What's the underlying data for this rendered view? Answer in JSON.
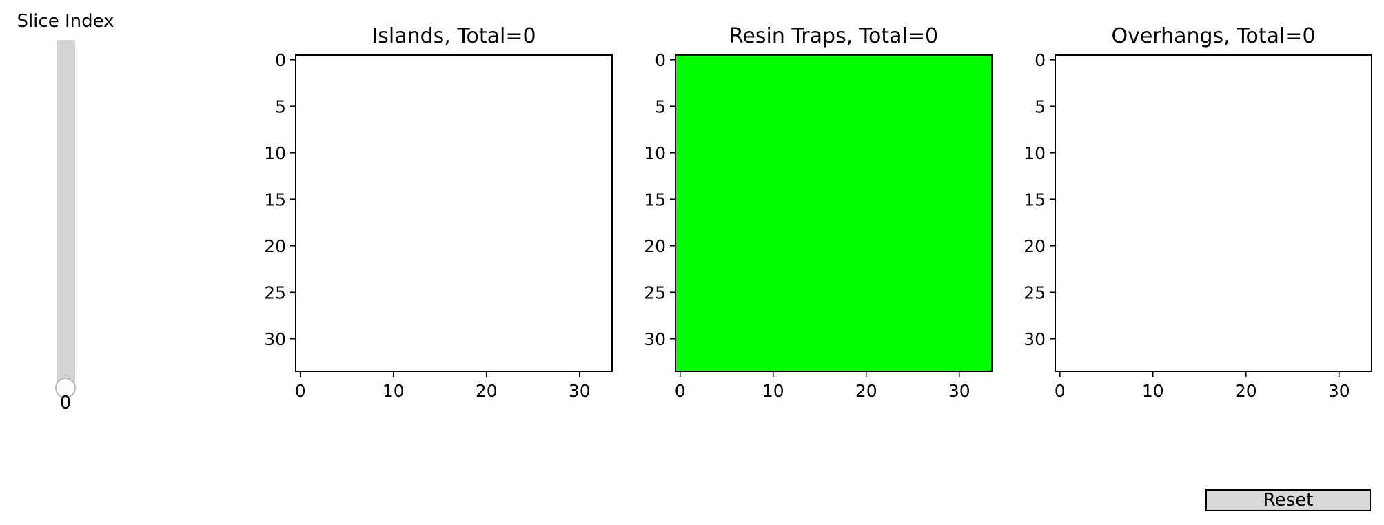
{
  "slider": {
    "label": "Slice Index",
    "value": "0",
    "min": 0,
    "max": 0,
    "track_color": "#d3d3d3"
  },
  "reset_button": {
    "label": "Reset",
    "color": "#d9d9d9"
  },
  "chart_data": [
    {
      "type": "heatmap",
      "title": "Islands, Total=0",
      "xlim": [
        -0.5,
        33.5
      ],
      "ylim": [
        33.5,
        -0.5
      ],
      "xticks": [
        0,
        10,
        20,
        30
      ],
      "yticks": [
        0,
        5,
        10,
        15,
        20,
        25,
        30
      ],
      "fill": "#ffffff",
      "grid": false
    },
    {
      "type": "heatmap",
      "title": "Resin Traps, Total=0",
      "xlim": [
        -0.5,
        33.5
      ],
      "ylim": [
        33.5,
        -0.5
      ],
      "xticks": [
        0,
        10,
        20,
        30
      ],
      "yticks": [
        0,
        5,
        10,
        15,
        20,
        25,
        30
      ],
      "fill": "#00ff00",
      "grid": false
    },
    {
      "type": "heatmap",
      "title": "Overhangs, Total=0",
      "xlim": [
        -0.5,
        33.5
      ],
      "ylim": [
        33.5,
        -0.5
      ],
      "xticks": [
        0,
        10,
        20,
        30
      ],
      "yticks": [
        0,
        5,
        10,
        15,
        20,
        25,
        30
      ],
      "fill": "#ffffff",
      "grid": false
    }
  ]
}
